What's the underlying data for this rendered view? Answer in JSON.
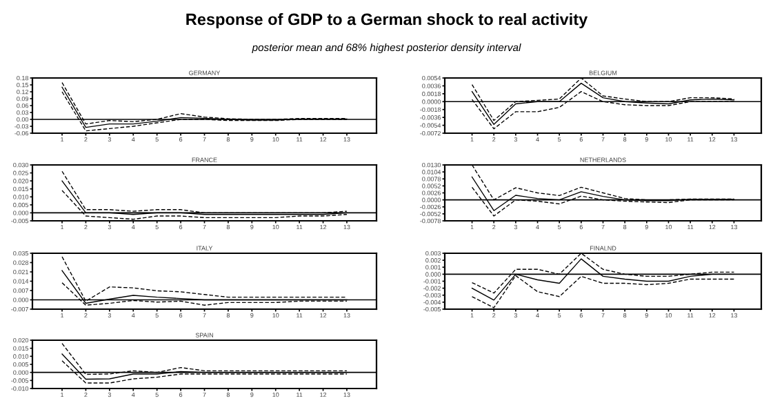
{
  "chart_data": [
    {
      "type": "other",
      "title": "Response of GDP to a German shock to real activity",
      "subtitle": "posterior mean and 68% highest posterior density interval"
    },
    {
      "type": "line",
      "title": "GERMANY",
      "x": [
        1,
        2,
        3,
        4,
        5,
        6,
        7,
        8,
        9,
        10,
        11,
        12,
        13
      ],
      "xlim": [
        -0.25,
        14.25
      ],
      "xticks": [
        1,
        2,
        3,
        4,
        5,
        6,
        7,
        8,
        9,
        10,
        11,
        12,
        13
      ],
      "ylim": [
        -0.06,
        0.18
      ],
      "yticks": [
        {
          "value": -0.06,
          "label": "-0.06"
        },
        {
          "value": -0.03,
          "label": "-0.03"
        },
        {
          "value": 0,
          "label": "0.00"
        },
        {
          "value": 0.03,
          "label": "0.03"
        },
        {
          "value": 0.06,
          "label": "0.06"
        },
        {
          "value": 0.09,
          "label": "0.09"
        },
        {
          "value": 0.12,
          "label": "0.12"
        },
        {
          "value": 0.15,
          "label": "0.15"
        },
        {
          "value": 0.18,
          "label": "0.18"
        }
      ],
      "grid": false,
      "legend": false,
      "ref_lines": [
        {
          "axis": "y",
          "value": 0,
          "color": "#000000"
        }
      ],
      "series": [
        {
          "color": "#000000",
          "line_style": "solid",
          "values": [
            0.14,
            -0.035,
            -0.02,
            -0.02,
            -0.008,
            0.008,
            0.005,
            0.0,
            -0.003,
            -0.003,
            0.002,
            0.002,
            0.002
          ]
        },
        {
          "color": "#000000",
          "line_style": "dashed",
          "values": [
            0.16,
            -0.02,
            -0.005,
            -0.01,
            0.0,
            0.025,
            0.01,
            0.003,
            0.0,
            0.0,
            0.004,
            0.004,
            0.004
          ]
        },
        {
          "color": "#000000",
          "line_style": "dashed",
          "values": [
            0.12,
            -0.05,
            -0.04,
            -0.03,
            -0.015,
            0.0,
            0.0,
            -0.005,
            -0.005,
            -0.005,
            0.0,
            0.0,
            0.0
          ]
        }
      ]
    },
    {
      "type": "line",
      "title": "FRANCE",
      "x": [
        1,
        2,
        3,
        4,
        5,
        6,
        7,
        8,
        9,
        10,
        11,
        12,
        13
      ],
      "xlim": [
        -0.25,
        14.25
      ],
      "xticks": [
        1,
        2,
        3,
        4,
        5,
        6,
        7,
        8,
        9,
        10,
        11,
        12,
        13
      ],
      "ylim": [
        -0.005,
        0.03
      ],
      "yticks": [
        {
          "value": -0.005,
          "label": "-0.005"
        },
        {
          "value": 0,
          "label": "0.000"
        },
        {
          "value": 0.005,
          "label": "0.005"
        },
        {
          "value": 0.01,
          "label": "0.010"
        },
        {
          "value": 0.015,
          "label": "0.015"
        },
        {
          "value": 0.02,
          "label": "0.020"
        },
        {
          "value": 0.025,
          "label": "0.025"
        },
        {
          "value": 0.03,
          "label": "0.030"
        }
      ],
      "grid": false,
      "legend": false,
      "ref_lines": [
        {
          "axis": "y",
          "value": 0,
          "color": "#000000"
        }
      ],
      "series": [
        {
          "color": "#000000",
          "line_style": "solid",
          "values": [
            0.02,
            0.0,
            0.0,
            -0.001,
            0.0,
            0.0,
            -0.001,
            -0.001,
            -0.001,
            -0.001,
            -0.001,
            -0.001,
            0.0
          ]
        },
        {
          "color": "#000000",
          "line_style": "dashed",
          "values": [
            0.026,
            0.002,
            0.002,
            0.001,
            0.002,
            0.002,
            0.0,
            0.0,
            0.0,
            0.0,
            0.0,
            0.0,
            0.001
          ]
        },
        {
          "color": "#000000",
          "line_style": "dashed",
          "values": [
            0.014,
            -0.002,
            -0.003,
            -0.004,
            -0.002,
            -0.002,
            -0.003,
            -0.003,
            -0.003,
            -0.003,
            -0.002,
            -0.002,
            -0.001
          ]
        }
      ]
    },
    {
      "type": "line",
      "title": "ITALY",
      "x": [
        1,
        2,
        3,
        4,
        5,
        6,
        7,
        8,
        9,
        10,
        11,
        12,
        13
      ],
      "xlim": [
        -0.25,
        14.25
      ],
      "xticks": [
        1,
        2,
        3,
        4,
        5,
        6,
        7,
        8,
        9,
        10,
        11,
        12,
        13
      ],
      "ylim": [
        -0.007,
        0.035
      ],
      "yticks": [
        {
          "value": -0.007,
          "label": "-0.007"
        },
        {
          "value": 0,
          "label": "0.000"
        },
        {
          "value": 0.007,
          "label": "0.007"
        },
        {
          "value": 0.014,
          "label": "0.014"
        },
        {
          "value": 0.021,
          "label": "0.021"
        },
        {
          "value": 0.028,
          "label": "0.028"
        },
        {
          "value": 0.035,
          "label": "0.035"
        }
      ],
      "grid": false,
      "legend": false,
      "ref_lines": [
        {
          "axis": "y",
          "value": 0,
          "color": "#000000"
        }
      ],
      "series": [
        {
          "color": "#000000",
          "line_style": "solid",
          "values": [
            0.022,
            -0.0026,
            0.0005,
            0.0034,
            0.002,
            0.001,
            0.0,
            0.0,
            0.0,
            0.0,
            0.0,
            0.0,
            0.0
          ]
        },
        {
          "color": "#000000",
          "line_style": "dashed",
          "values": [
            0.0324,
            -0.001,
            0.0097,
            0.009,
            0.0068,
            0.006,
            0.004,
            0.002,
            0.002,
            0.002,
            0.002,
            0.002,
            0.002
          ]
        },
        {
          "color": "#000000",
          "line_style": "dashed",
          "values": [
            0.0128,
            -0.004,
            -0.0026,
            -0.0005,
            -0.0017,
            -0.001,
            -0.004,
            -0.002,
            -0.002,
            -0.002,
            -0.001,
            -0.001,
            -0.001
          ]
        }
      ]
    },
    {
      "type": "line",
      "title": "SPAIN",
      "x": [
        1,
        2,
        3,
        4,
        5,
        6,
        7,
        8,
        9,
        10,
        11,
        12,
        13
      ],
      "xlim": [
        -0.25,
        14.25
      ],
      "xticks": [
        1,
        2,
        3,
        4,
        5,
        6,
        7,
        8,
        9,
        10,
        11,
        12,
        13
      ],
      "ylim": [
        -0.01,
        0.02
      ],
      "yticks": [
        {
          "value": -0.01,
          "label": "-0.010"
        },
        {
          "value": -0.005,
          "label": "-0.005"
        },
        {
          "value": 0,
          "label": "0.000"
        },
        {
          "value": 0.005,
          "label": "0.005"
        },
        {
          "value": 0.01,
          "label": "0.010"
        },
        {
          "value": 0.015,
          "label": "0.015"
        },
        {
          "value": 0.02,
          "label": "0.020"
        }
      ],
      "grid": false,
      "legend": false,
      "ref_lines": [
        {
          "axis": "y",
          "value": 0,
          "color": "#000000"
        }
      ],
      "series": [
        {
          "color": "#000000",
          "line_style": "solid",
          "values": [
            0.0114,
            -0.0042,
            -0.004,
            -0.001,
            -0.001,
            0.0005,
            0.0,
            0.0,
            0.0,
            0.0,
            0.0,
            0.0,
            0.0
          ]
        },
        {
          "color": "#000000",
          "line_style": "dashed",
          "values": [
            0.018,
            -0.0012,
            -0.001,
            0.001,
            0.0,
            0.003,
            0.001,
            0.001,
            0.001,
            0.001,
            0.001,
            0.001,
            0.001
          ]
        },
        {
          "color": "#000000",
          "line_style": "dashed",
          "values": [
            0.0072,
            -0.0066,
            -0.0066,
            -0.004,
            -0.003,
            -0.001,
            -0.001,
            -0.001,
            -0.001,
            -0.001,
            -0.001,
            -0.001,
            -0.001
          ]
        }
      ]
    },
    {
      "type": "line",
      "title": "BELGIUM",
      "x": [
        1,
        2,
        3,
        4,
        5,
        6,
        7,
        8,
        9,
        10,
        11,
        12,
        13
      ],
      "xlim": [
        -0.25,
        14.25
      ],
      "xticks": [
        1,
        2,
        3,
        4,
        5,
        6,
        7,
        8,
        9,
        10,
        11,
        12,
        13
      ],
      "ylim": [
        -0.0072,
        0.0054
      ],
      "yticks": [
        {
          "value": -0.0072,
          "label": "-0.0072"
        },
        {
          "value": -0.0054,
          "label": "-0.0054"
        },
        {
          "value": -0.0036,
          "label": "-0.0036"
        },
        {
          "value": -0.0018,
          "label": "-0.0018"
        },
        {
          "value": 0,
          "label": "0.0000"
        },
        {
          "value": 0.0018,
          "label": "0.0018"
        },
        {
          "value": 0.0036,
          "label": "0.0036"
        },
        {
          "value": 0.0054,
          "label": "0.0054"
        }
      ],
      "grid": false,
      "legend": false,
      "ref_lines": [
        {
          "axis": "y",
          "value": 0,
          "color": "#000000"
        }
      ],
      "series": [
        {
          "color": "#000000",
          "line_style": "solid",
          "values": [
            0.0023,
            -0.0052,
            -0.0005,
            0.0,
            0.0,
            0.0042,
            0.0009,
            0.0,
            -0.0003,
            -0.0005,
            0.0004,
            0.0006,
            0.0004
          ]
        },
        {
          "color": "#000000",
          "line_style": "dashed",
          "values": [
            0.0039,
            -0.0043,
            0.0,
            0.0003,
            0.0006,
            0.0054,
            0.0013,
            0.0006,
            0.0,
            0.0,
            0.0009,
            0.0009,
            0.0006
          ]
        },
        {
          "color": "#000000",
          "line_style": "dashed",
          "values": [
            0.0005,
            -0.0062,
            -0.0023,
            -0.0023,
            -0.0013,
            0.0023,
            0.0,
            -0.0007,
            -0.0009,
            -0.0009,
            0.0,
            0.0,
            0.0
          ]
        }
      ]
    },
    {
      "type": "line",
      "title": "NETHERLANDS",
      "x": [
        1,
        2,
        3,
        4,
        5,
        6,
        7,
        8,
        9,
        10,
        11,
        12,
        13
      ],
      "xlim": [
        -0.25,
        14.25
      ],
      "xticks": [
        1,
        2,
        3,
        4,
        5,
        6,
        7,
        8,
        9,
        10,
        11,
        12,
        13
      ],
      "ylim": [
        -0.0078,
        0.013
      ],
      "yticks": [
        {
          "value": -0.0078,
          "label": "-0.0078"
        },
        {
          "value": -0.0052,
          "label": "-0.0052"
        },
        {
          "value": -0.0026,
          "label": "-0.0026"
        },
        {
          "value": 0,
          "label": "0.0000"
        },
        {
          "value": 0.0026,
          "label": "0.0026"
        },
        {
          "value": 0.0052,
          "label": "0.0052"
        },
        {
          "value": 0.0078,
          "label": "0.0078"
        },
        {
          "value": 0.0104,
          "label": "0.0104"
        },
        {
          "value": 0.013,
          "label": "0.0130"
        }
      ],
      "grid": false,
      "legend": false,
      "ref_lines": [
        {
          "axis": "y",
          "value": 0,
          "color": "#000000"
        }
      ],
      "series": [
        {
          "color": "#000000",
          "line_style": "solid",
          "values": [
            0.0085,
            -0.004,
            0.0017,
            0.0005,
            0.0,
            0.003,
            0.0013,
            0.0,
            -0.0003,
            -0.0003,
            0.0002,
            0.0002,
            0.0002
          ]
        },
        {
          "color": "#000000",
          "line_style": "dashed",
          "values": [
            0.013,
            0.0,
            0.0045,
            0.0026,
            0.0016,
            0.0047,
            0.0026,
            0.0005,
            0.0,
            0.0,
            0.0003,
            0.0003,
            0.0003
          ]
        },
        {
          "color": "#000000",
          "line_style": "dashed",
          "values": [
            0.0047,
            -0.006,
            0.0,
            -0.0005,
            -0.0015,
            0.0014,
            0.0,
            -0.0005,
            -0.0008,
            -0.001,
            0.0,
            0.0,
            0.0
          ]
        }
      ]
    },
    {
      "type": "line",
      "title": "FINALND",
      "x": [
        1,
        2,
        3,
        4,
        5,
        6,
        7,
        8,
        9,
        10,
        11,
        12,
        13
      ],
      "xlim": [
        -0.25,
        14.25
      ],
      "xticks": [
        1,
        2,
        3,
        4,
        5,
        6,
        7,
        8,
        9,
        10,
        11,
        12,
        13
      ],
      "ylim": [
        -0.005,
        0.003
      ],
      "yticks": [
        {
          "value": -0.005,
          "label": "-0.005"
        },
        {
          "value": -0.004,
          "label": "-0.004"
        },
        {
          "value": -0.003,
          "label": "-0.003"
        },
        {
          "value": -0.002,
          "label": "-0.002"
        },
        {
          "value": -0.001,
          "label": "-0.001"
        },
        {
          "value": 0,
          "label": "0.000"
        },
        {
          "value": 0.001,
          "label": "0.001"
        },
        {
          "value": 0.002,
          "label": "0.002"
        },
        {
          "value": 0.003,
          "label": "0.003"
        }
      ],
      "grid": false,
      "legend": false,
      "ref_lines": [
        {
          "axis": "y",
          "value": 0,
          "color": "#000000"
        }
      ],
      "series": [
        {
          "color": "#000000",
          "line_style": "solid",
          "values": [
            -0.002,
            -0.0037,
            0.0,
            -0.0008,
            -0.0013,
            0.0022,
            -0.0003,
            -0.0007,
            -0.001,
            -0.001,
            -0.0003,
            0.0,
            0.0
          ]
        },
        {
          "color": "#000000",
          "line_style": "dashed",
          "values": [
            -0.0012,
            -0.0027,
            0.0007,
            0.0007,
            0.0,
            0.003,
            0.0007,
            0.0,
            -0.0003,
            -0.0003,
            0.0,
            0.0003,
            0.0003
          ]
        },
        {
          "color": "#000000",
          "line_style": "dashed",
          "values": [
            -0.0032,
            -0.0048,
            -0.0002,
            -0.0025,
            -0.0032,
            -0.0003,
            -0.0013,
            -0.0013,
            -0.0015,
            -0.0013,
            -0.0007,
            -0.0007,
            -0.0007
          ]
        }
      ]
    }
  ]
}
